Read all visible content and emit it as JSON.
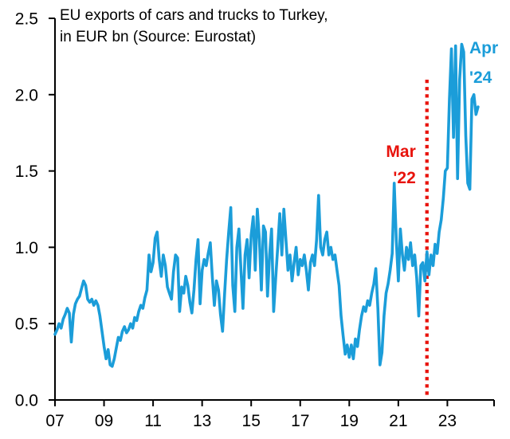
{
  "chart_data": {
    "type": "line",
    "title": "EU exports of cars and trucks to Turkey, in EUR bn (Source: Eurostat)",
    "title_lines": [
      "EU exports of cars and trucks to Turkey,",
      "in EUR bn (Source: Eurostat)"
    ],
    "unit": "EUR bn",
    "source": "Eurostat",
    "frequency": "monthly",
    "x_start": "2007-01",
    "x_end": "2024-04",
    "ylim": [
      0,
      2.5
    ],
    "grid": false,
    "legend": "none",
    "line_color": "#1B9DD9",
    "axis_color": "#000000",
    "y_tick_labels": [
      "0.0",
      "0.5",
      "1.0",
      "1.5",
      "2.0",
      "2.5"
    ],
    "y_ticks": [
      0,
      0.5,
      1.0,
      1.5,
      2.0,
      2.5
    ],
    "x_tick_labels": [
      "07",
      "09",
      "11",
      "13",
      "15",
      "17",
      "19",
      "21",
      "23"
    ],
    "x_tick_month_indices": [
      0,
      24,
      48,
      72,
      96,
      120,
      144,
      168,
      192
    ],
    "series": [
      {
        "name": "EU exports of cars and trucks to Turkey (EUR bn)",
        "values": [
          0.43,
          0.46,
          0.5,
          0.47,
          0.53,
          0.56,
          0.6,
          0.57,
          0.38,
          0.56,
          0.63,
          0.66,
          0.68,
          0.73,
          0.78,
          0.75,
          0.66,
          0.64,
          0.66,
          0.62,
          0.65,
          0.62,
          0.55,
          0.45,
          0.35,
          0.27,
          0.33,
          0.23,
          0.22,
          0.27,
          0.34,
          0.41,
          0.39,
          0.45,
          0.48,
          0.44,
          0.46,
          0.5,
          0.47,
          0.54,
          0.52,
          0.58,
          0.62,
          0.6,
          0.67,
          0.72,
          0.95,
          0.84,
          0.9,
          1.06,
          1.1,
          0.92,
          0.81,
          0.95,
          0.88,
          0.74,
          0.7,
          0.66,
          0.84,
          0.95,
          0.93,
          0.58,
          0.74,
          0.7,
          0.81,
          0.75,
          0.64,
          0.57,
          0.72,
          0.92,
          1.05,
          0.63,
          0.85,
          0.92,
          0.88,
          0.96,
          1.03,
          0.8,
          0.62,
          0.78,
          0.72,
          0.56,
          0.45,
          0.7,
          0.92,
          1.1,
          1.26,
          0.75,
          0.58,
          1.0,
          1.12,
          0.85,
          0.6,
          0.95,
          1.05,
          0.8,
          1.08,
          1.2,
          0.85,
          1.25,
          1.05,
          0.72,
          1.14,
          1.1,
          0.68,
          0.95,
          1.12,
          0.58,
          0.8,
          1.0,
          1.22,
          0.95,
          1.25,
          1.05,
          0.85,
          0.95,
          0.78,
          0.9,
          1.0,
          0.82,
          0.92,
          0.88,
          0.95,
          0.85,
          0.72,
          0.9,
          0.95,
          0.88,
          1.05,
          1.34,
          1.0,
          0.95,
          1.05,
          1.1,
          0.95,
          1.0,
          0.92,
          0.95,
          0.85,
          0.75,
          0.55,
          0.42,
          0.3,
          0.36,
          0.28,
          0.36,
          0.27,
          0.4,
          0.35,
          0.46,
          0.55,
          0.61,
          0.58,
          0.65,
          0.62,
          0.7,
          0.76,
          0.86,
          0.6,
          0.23,
          0.31,
          0.55,
          0.7,
          0.76,
          0.85,
          0.96,
          1.42,
          1.05,
          0.78,
          1.12,
          0.95,
          0.85,
          1.0,
          0.92,
          1.03,
          0.88,
          0.95,
          0.8,
          0.55,
          0.88,
          0.9,
          0.78,
          0.97,
          0.82,
          0.95,
          0.88,
          1.02,
          0.96,
          1.1,
          1.18,
          1.32,
          1.5,
          1.52,
          1.97,
          2.3,
          1.72,
          2.32,
          1.45,
          2.1,
          2.33,
          2.28,
          1.73,
          1.42,
          1.38,
          1.97,
          2.0,
          1.87,
          1.92
        ]
      }
    ],
    "event_line": {
      "label": "Mar '22",
      "month": "2022-03",
      "month_index": 182,
      "color": "#E8130C",
      "style": "dotted"
    },
    "annotations": [
      {
        "text_lines": [
          "Mar",
          "'22"
        ],
        "color": "#E8130C",
        "refers_to": "2022-03"
      },
      {
        "text_lines": [
          "Apr",
          "'24"
        ],
        "color": "#1B9DD9",
        "refers_to": "2024-04"
      }
    ]
  }
}
